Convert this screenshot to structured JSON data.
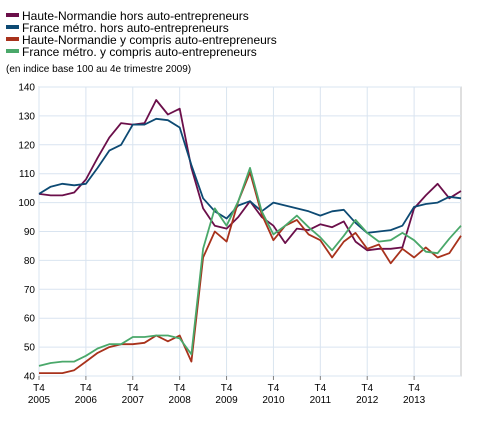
{
  "legend": [
    {
      "label": "Haute-Normandie hors auto-entrepreneurs",
      "color": "#6b0f4a"
    },
    {
      "label": "France métro. hors auto-entrepreneurs",
      "color": "#0d4a73"
    },
    {
      "label": "Haute-Normandie y compris auto-entrepreneurs",
      "color": "#a8321c"
    },
    {
      "label": "France métro. y compris auto-entrepreneurs",
      "color": "#4aa86a"
    }
  ],
  "subtitle": "(en indice base 100 au 4e trimestre 2009)",
  "chart_data": {
    "type": "line",
    "title": "",
    "xlabel": "",
    "ylabel": "",
    "x_tick_labels": [
      {
        "top": "T4",
        "bottom": "2005"
      },
      {
        "top": "T4",
        "bottom": "2006"
      },
      {
        "top": "T4",
        "bottom": "2007"
      },
      {
        "top": "T4",
        "bottom": "2008"
      },
      {
        "top": "T4",
        "bottom": "2009"
      },
      {
        "top": "T4",
        "bottom": "2010"
      },
      {
        "top": "T4",
        "bottom": "2011"
      },
      {
        "top": "T4",
        "bottom": "2012"
      },
      {
        "top": "T4",
        "bottom": "2013"
      }
    ],
    "x_start": "2005 T4",
    "x_end": "2014 T1",
    "ylim": [
      40,
      140
    ],
    "yticks": [
      40,
      50,
      60,
      70,
      80,
      90,
      100,
      110,
      120,
      130,
      140
    ],
    "grid": true,
    "legend_position": "top-left",
    "series": [
      {
        "name": "Haute-Normandie hors auto-entrepreneurs",
        "color": "#6b0f4a",
        "values": [
          103,
          102.5,
          102.5,
          103.5,
          108,
          115.5,
          122.5,
          127.5,
          127,
          127.5,
          135.5,
          130.5,
          132.5,
          112,
          98,
          92,
          91,
          95,
          100.5,
          95,
          92,
          86,
          91,
          90.5,
          92.5,
          91.5,
          93.5,
          86.5,
          83.5,
          84,
          84,
          84.5,
          98,
          102.5,
          106.5,
          101.5,
          104
        ]
      },
      {
        "name": "France métro. hors auto-entrepreneurs",
        "color": "#0d4a73",
        "values": [
          103,
          105.5,
          106.5,
          106,
          106.5,
          112,
          118,
          120,
          127,
          127,
          129,
          128.5,
          126,
          113,
          101.5,
          97,
          94.5,
          99,
          100.5,
          97,
          100,
          99,
          98,
          97,
          95.5,
          97,
          97.5,
          93,
          89.5,
          90,
          90.5,
          92,
          98.5,
          99.5,
          100,
          102,
          101.5
        ]
      },
      {
        "name": "Haute-Normandie y compris auto-entrepreneurs",
        "color": "#a8321c",
        "values": [
          41,
          41,
          41,
          42,
          45,
          48,
          50,
          51,
          51,
          51.5,
          54,
          52,
          54,
          45,
          81,
          90,
          86.5,
          100.5,
          110.5,
          96,
          87,
          92,
          94,
          89,
          87,
          81,
          86.5,
          89.5,
          84,
          85.5,
          79,
          84,
          81,
          84.5,
          81,
          82.5,
          88.5
        ]
      },
      {
        "name": "France métro. y compris auto-entrepreneurs",
        "color": "#4aa86a",
        "values": [
          43.5,
          44.5,
          45,
          45,
          47,
          49.5,
          51,
          51,
          53.5,
          53.5,
          54,
          54,
          53,
          47.5,
          84,
          98,
          92,
          100.5,
          112,
          97,
          89,
          92,
          95.5,
          91.5,
          88,
          83.5,
          88.5,
          94,
          89.5,
          86.5,
          87,
          89.5,
          87,
          83,
          82.5,
          87.5,
          92
        ]
      }
    ]
  }
}
